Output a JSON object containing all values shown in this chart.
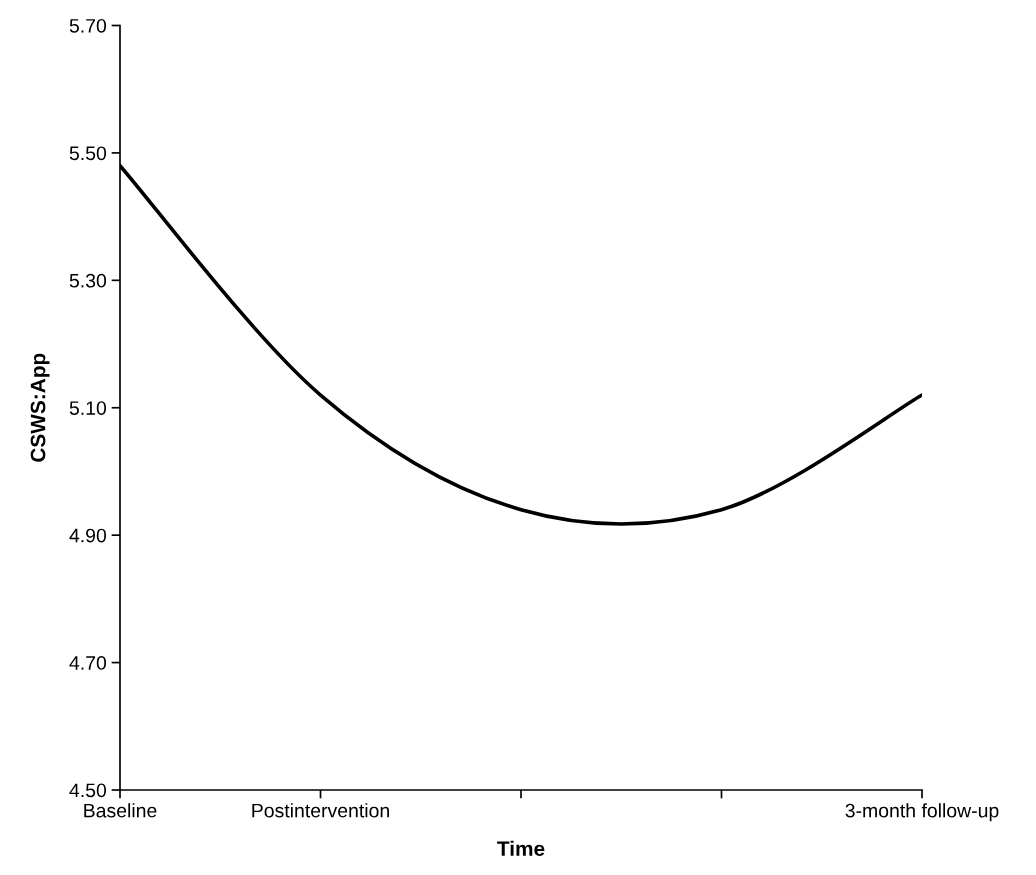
{
  "chart_data": {
    "type": "line",
    "xlabel": "Time",
    "ylabel": "CSWS:App",
    "categories": [
      "Baseline",
      "Postintervention",
      null,
      null,
      "3-month follow-up"
    ],
    "series": [
      {
        "color": "#000000",
        "values": [
          5.48,
          5.12,
          4.94,
          4.94,
          5.12
        ]
      }
    ],
    "ylim": [
      4.5,
      5.7
    ],
    "yticks": [
      {
        "value": 4.5,
        "label": "4.50"
      },
      {
        "value": 4.7,
        "label": "4.70"
      },
      {
        "value": 4.9,
        "label": "4.90"
      },
      {
        "value": 5.1,
        "label": "5.10"
      },
      {
        "value": 5.3,
        "label": "5.30"
      },
      {
        "value": 5.5,
        "label": "5.50"
      },
      {
        "value": 5.7,
        "label": "5.70"
      }
    ],
    "grid": false,
    "marker": "none",
    "line_style": "solid"
  }
}
